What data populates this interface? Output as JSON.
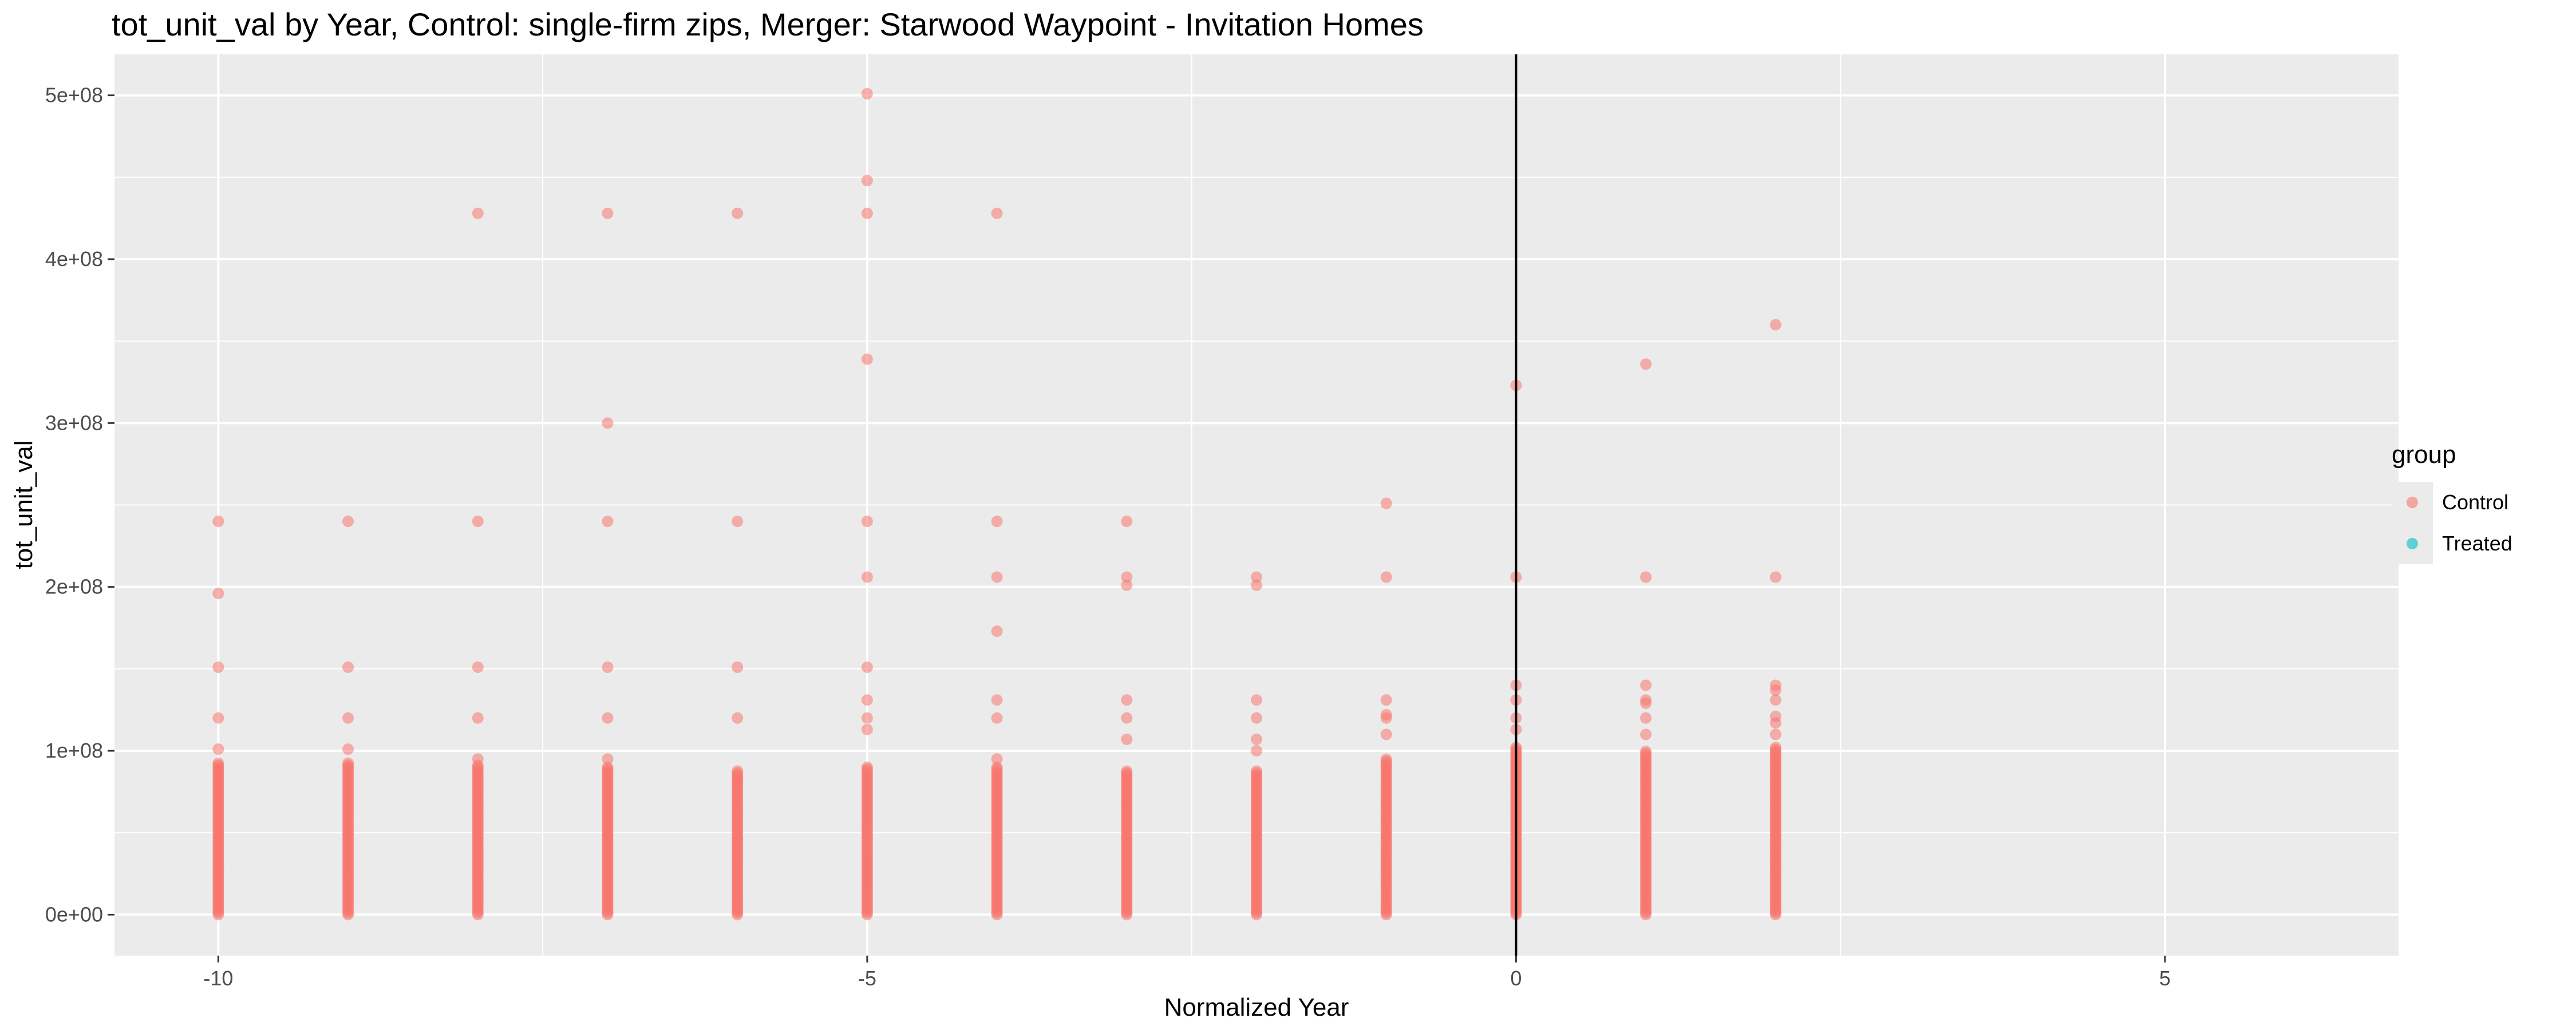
{
  "chart_data": {
    "type": "scatter",
    "title": "tot_unit_val by Year, Control: single-firm zips, Merger: Starwood Waypoint - Invitation Homes",
    "xlabel": "Normalized Year",
    "ylabel": "tot_unit_val",
    "xlim": [
      -10.8,
      6.8
    ],
    "ylim": [
      -25000000,
      525000000
    ],
    "x_ticks": [
      -10,
      -5,
      0,
      5
    ],
    "x_tick_labels": [
      "-10",
      "-5",
      "0",
      "5"
    ],
    "y_ticks": [
      0,
      100000000,
      200000000,
      300000000,
      400000000,
      500000000
    ],
    "y_tick_labels": [
      "0e+00",
      "1e+08",
      "2e+08",
      "3e+08",
      "4e+08",
      "5e+08"
    ],
    "vline_x": 0,
    "grid": true,
    "legend": {
      "title": "group",
      "placement": "right",
      "entries": [
        {
          "name": "Control",
          "color": "#F8766D"
        },
        {
          "name": "Treated",
          "color": "#00BFC4"
        }
      ]
    },
    "series": [
      {
        "name": "Control",
        "color": "#F8766D",
        "dense_columns": [
          {
            "x": -10,
            "y_from": 0,
            "y_to": 93000000
          },
          {
            "x": -9,
            "y_from": 0,
            "y_to": 93000000
          },
          {
            "x": -8,
            "y_from": 0,
            "y_to": 92000000
          },
          {
            "x": -7,
            "y_from": 0,
            "y_to": 90000000
          },
          {
            "x": -6,
            "y_from": 0,
            "y_to": 88000000
          },
          {
            "x": -5,
            "y_from": 0,
            "y_to": 90000000
          },
          {
            "x": -4,
            "y_from": 0,
            "y_to": 90000000
          },
          {
            "x": -3,
            "y_from": 0,
            "y_to": 88000000
          },
          {
            "x": -2,
            "y_from": 0,
            "y_to": 88000000
          },
          {
            "x": -1,
            "y_from": 0,
            "y_to": 95000000
          },
          {
            "x": 0,
            "y_from": 0,
            "y_to": 103000000
          },
          {
            "x": 1,
            "y_from": 0,
            "y_to": 100000000
          },
          {
            "x": 2,
            "y_from": 0,
            "y_to": 103000000
          }
        ],
        "points": [
          [
            -10,
            240000000
          ],
          [
            -10,
            196000000
          ],
          [
            -10,
            151000000
          ],
          [
            -10,
            120000000
          ],
          [
            -10,
            101000000
          ],
          [
            -9,
            240000000
          ],
          [
            -9,
            151000000
          ],
          [
            -9,
            120000000
          ],
          [
            -9,
            101000000
          ],
          [
            -8,
            428000000
          ],
          [
            -8,
            240000000
          ],
          [
            -8,
            151000000
          ],
          [
            -8,
            120000000
          ],
          [
            -8,
            95000000
          ],
          [
            -7,
            428000000
          ],
          [
            -7,
            300000000
          ],
          [
            -7,
            240000000
          ],
          [
            -7,
            151000000
          ],
          [
            -7,
            120000000
          ],
          [
            -7,
            95000000
          ],
          [
            -6,
            428000000
          ],
          [
            -6,
            240000000
          ],
          [
            -6,
            151000000
          ],
          [
            -6,
            120000000
          ],
          [
            -5,
            501000000
          ],
          [
            -5,
            448000000
          ],
          [
            -5,
            428000000
          ],
          [
            -5,
            339000000
          ],
          [
            -5,
            240000000
          ],
          [
            -5,
            206000000
          ],
          [
            -5,
            151000000
          ],
          [
            -5,
            131000000
          ],
          [
            -5,
            120000000
          ],
          [
            -5,
            113000000
          ],
          [
            -4,
            428000000
          ],
          [
            -4,
            240000000
          ],
          [
            -4,
            206000000
          ],
          [
            -4,
            173000000
          ],
          [
            -4,
            131000000
          ],
          [
            -4,
            120000000
          ],
          [
            -4,
            95000000
          ],
          [
            -3,
            240000000
          ],
          [
            -3,
            206000000
          ],
          [
            -3,
            201000000
          ],
          [
            -3,
            131000000
          ],
          [
            -3,
            120000000
          ],
          [
            -3,
            107000000
          ],
          [
            -2,
            206000000
          ],
          [
            -2,
            201000000
          ],
          [
            -2,
            131000000
          ],
          [
            -2,
            120000000
          ],
          [
            -2,
            107000000
          ],
          [
            -2,
            100000000
          ],
          [
            -1,
            251000000
          ],
          [
            -1,
            206000000
          ],
          [
            -1,
            131000000
          ],
          [
            -1,
            122000000
          ],
          [
            -1,
            120000000
          ],
          [
            -1,
            110000000
          ],
          [
            0,
            323000000
          ],
          [
            0,
            206000000
          ],
          [
            0,
            140000000
          ],
          [
            0,
            131000000
          ],
          [
            0,
            120000000
          ],
          [
            0,
            113000000
          ],
          [
            1,
            336000000
          ],
          [
            1,
            206000000
          ],
          [
            1,
            140000000
          ],
          [
            1,
            131000000
          ],
          [
            1,
            129000000
          ],
          [
            1,
            120000000
          ],
          [
            1,
            110000000
          ],
          [
            2,
            360000000
          ],
          [
            2,
            206000000
          ],
          [
            2,
            140000000
          ],
          [
            2,
            137000000
          ],
          [
            2,
            131000000
          ],
          [
            2,
            121000000
          ],
          [
            2,
            117000000
          ],
          [
            2,
            110000000
          ]
        ]
      },
      {
        "name": "Treated",
        "color": "#00BFC4",
        "points": []
      }
    ]
  }
}
